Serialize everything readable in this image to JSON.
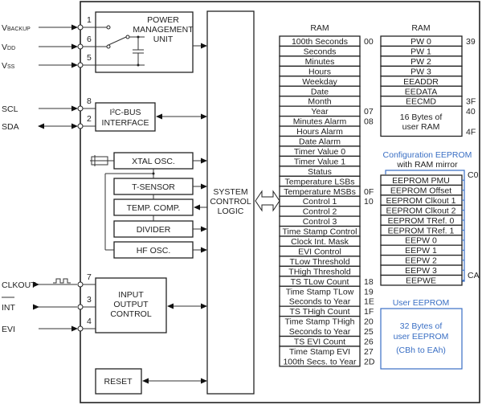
{
  "pins": [
    {
      "name": "V",
      "sub": "BACKUP",
      "num": "1",
      "dir": "in"
    },
    {
      "name": "V",
      "sub": "DD",
      "num": "6",
      "dir": "in"
    },
    {
      "name": "V",
      "sub": "SS",
      "num": "5",
      "dir": "in"
    },
    {
      "name": "SCL",
      "sub": "",
      "num": "8",
      "dir": "in"
    },
    {
      "name": "SDA",
      "sub": "",
      "num": "2",
      "dir": "bi"
    },
    {
      "name": "CLKOUT",
      "sub": "",
      "num": "7",
      "dir": "out"
    },
    {
      "name": "INT",
      "sub": "",
      "num": "3",
      "dir": "out"
    },
    {
      "name": "EVI",
      "sub": "",
      "num": "4",
      "dir": "in"
    }
  ],
  "blocks": {
    "power": [
      "POWER",
      "MANAGEMENT",
      "UNIT"
    ],
    "i2c": [
      "I²C-BUS",
      "INTERFACE"
    ],
    "xtal": "XTAL OSC.",
    "tsensor": "T-SENSOR",
    "tempcomp": "TEMP. COMP.",
    "divider": "DIVIDER",
    "hfosc": "HF OSC.",
    "io": [
      "INPUT",
      "OUTPUT",
      "CONTROL"
    ],
    "reset": "RESET",
    "scl": [
      "SYSTEM",
      "CONTROL",
      "LOGIC"
    ]
  },
  "ram1": {
    "title": "RAM",
    "rows": [
      {
        "l": [
          "100th Seconds"
        ],
        "a": "00"
      },
      {
        "l": [
          "Seconds"
        ]
      },
      {
        "l": [
          "Minutes"
        ]
      },
      {
        "l": [
          "Hours"
        ]
      },
      {
        "l": [
          "Weekday"
        ]
      },
      {
        "l": [
          "Date"
        ]
      },
      {
        "l": [
          "Month"
        ]
      },
      {
        "l": [
          "Year"
        ],
        "a": "07"
      },
      {
        "l": [
          "Minutes Alarm"
        ],
        "a": "08"
      },
      {
        "l": [
          "Hours Alarm"
        ]
      },
      {
        "l": [
          "Date Alarm"
        ]
      },
      {
        "l": [
          "Timer Value 0"
        ]
      },
      {
        "l": [
          "Timer Value 1"
        ]
      },
      {
        "l": [
          "Status"
        ]
      },
      {
        "l": [
          "Temperature LSBs"
        ]
      },
      {
        "l": [
          "Temperature MSBs"
        ],
        "a": "0F"
      },
      {
        "l": [
          "Control 1"
        ],
        "a": "10"
      },
      {
        "l": [
          "Control 2"
        ]
      },
      {
        "l": [
          "Control 3"
        ]
      },
      {
        "l": [
          "Time Stamp Control"
        ]
      },
      {
        "l": [
          "Clock Int. Mask"
        ]
      },
      {
        "l": [
          "EVI Control"
        ]
      },
      {
        "l": [
          "TLow Threshold"
        ]
      },
      {
        "l": [
          "THigh Threshold"
        ]
      },
      {
        "l": [
          "TS TLow Count"
        ],
        "a": "18"
      },
      {
        "l": [
          "Time Stamp TLow",
          "Seconds to Year"
        ],
        "a": "19",
        "a2": "1E"
      },
      {
        "l": [
          "TS THigh Count"
        ],
        "a": "1F"
      },
      {
        "l": [
          "Time Stamp THigh",
          "Seconds to Year"
        ],
        "a": "20",
        "a2": "25"
      },
      {
        "l": [
          "TS EVI Count"
        ],
        "a": "26"
      },
      {
        "l": [
          "Time Stamp EVI",
          "100th Secs. to Year"
        ],
        "a": "27",
        "a2": "2D"
      }
    ]
  },
  "ram2": {
    "title": "RAM",
    "rows": [
      {
        "l": [
          "PW 0"
        ],
        "a": "39"
      },
      {
        "l": [
          "PW 1"
        ]
      },
      {
        "l": [
          "PW 2"
        ]
      },
      {
        "l": [
          "PW 3"
        ]
      },
      {
        "l": [
          "EEADDR"
        ]
      },
      {
        "l": [
          "EEDATA"
        ]
      },
      {
        "l": [
          "EECMD"
        ],
        "a": "3F"
      },
      {
        "l": [
          "16 Bytes of",
          "user RAM"
        ],
        "a": "40",
        "a2": "4F",
        "h": 3
      }
    ]
  },
  "config": {
    "title": [
      "Configuration EEPROM",
      "with RAM mirror"
    ],
    "start": "C0",
    "end": "CA",
    "rows": [
      "EEPROM PMU",
      "EEPROM Offset",
      "EEPROM Clkout 1",
      "EEPROM Clkout 2",
      "EEPROM TRef. 0",
      "EEPROM TRef. 1",
      "EEPW 0",
      "EEPW 1",
      "EEPW 2",
      "EEPW 3",
      "EEPWE"
    ]
  },
  "user_eeprom": {
    "title": "User EEPROM",
    "lines": [
      "32 Bytes of",
      "user EEPROM",
      "(CBh to EAh)"
    ]
  },
  "colors": {
    "accent": "#3a6fc4",
    "line": "#222222"
  }
}
